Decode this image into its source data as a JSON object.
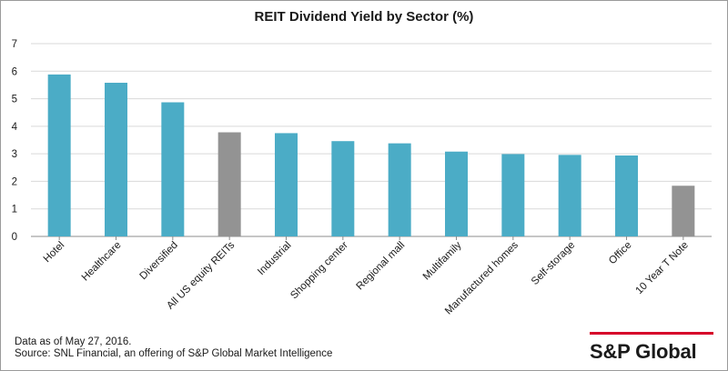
{
  "colors": {
    "sector_bar": "#4bacc6",
    "benchmark_bar": "#939393",
    "brand_red": "#d6002a",
    "grid": "#d9d9d9"
  },
  "chart_data": {
    "type": "bar",
    "title": "REIT Dividend Yield by Sector (%)",
    "xlabel": "",
    "ylabel": "",
    "ylim": [
      0,
      7
    ],
    "yticks": [
      0,
      1,
      2,
      3,
      4,
      5,
      6,
      7
    ],
    "grid": true,
    "categories": [
      "Hotel",
      "Healthcare",
      "Diversified",
      "All US equity REITs",
      "Industrial",
      "Shopping center",
      "Regional mall",
      "Multifamily",
      "Manufactured homes",
      "Self-storage",
      "Office",
      "10 Year T Note"
    ],
    "values": [
      5.88,
      5.58,
      4.87,
      3.78,
      3.75,
      3.46,
      3.38,
      3.08,
      2.99,
      2.96,
      2.94,
      1.84
    ],
    "highlighted_categories": [
      "All US equity REITs",
      "10 Year T Note"
    ]
  },
  "footer": {
    "date_note": "Data as of  May 27, 2016.",
    "source_note": "Source: SNL Financial, an offering of S&P Global Market Intelligence"
  },
  "brand": {
    "logo_text": "S&P Global"
  }
}
